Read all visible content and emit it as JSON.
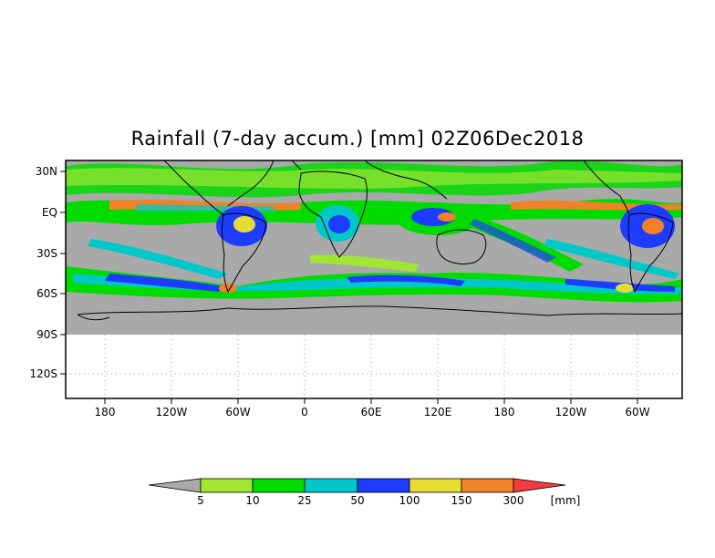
{
  "title": "Rainfall (7-day accum.) [mm] 02Z06Dec2018",
  "map": {
    "lat_labels": [
      "30N",
      "EQ",
      "30S",
      "60S",
      "90S",
      "120S"
    ],
    "lon_labels": [
      "180",
      "120W",
      "60W",
      "0",
      "60E",
      "120E",
      "180",
      "120W",
      "60W"
    ],
    "land_color": "#a9a9a9",
    "missing_area_color": "#ffffff"
  },
  "colorbar": {
    "ticks": [
      "5",
      "10",
      "25",
      "50",
      "100",
      "150",
      "300"
    ],
    "unit": "[mm]",
    "bins": [
      {
        "label": "<5",
        "color": "#a9a9a9"
      },
      {
        "label": "5-10",
        "color": "#a0e632"
      },
      {
        "label": "10-25",
        "color": "#00dc00"
      },
      {
        "label": "25-50",
        "color": "#00c8c8"
      },
      {
        "label": "50-100",
        "color": "#1e3cff"
      },
      {
        "label": "100-150",
        "color": "#e6dc32"
      },
      {
        "label": "150-300",
        "color": "#f08228"
      },
      {
        "label": ">300",
        "color": "#f03c3c"
      }
    ]
  }
}
